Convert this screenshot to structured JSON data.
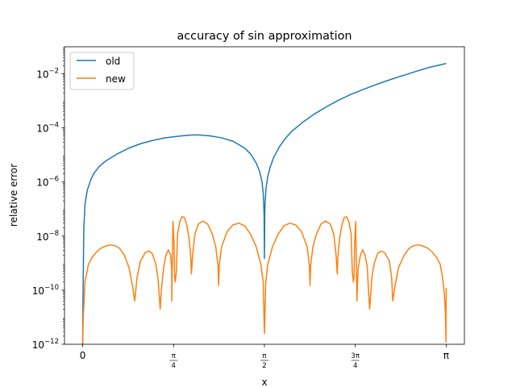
{
  "chart_data": {
    "type": "line",
    "title": "accuracy of sin approximation",
    "xlabel": "x",
    "ylabel": "relative error",
    "yscale": "log",
    "xlim": [
      -0.157,
      3.299
    ],
    "ylim": [
      1e-12,
      0.1
    ],
    "grid": false,
    "legend_position": "top-left",
    "x_ticks": [
      {
        "value": 0,
        "label": "0"
      },
      {
        "value": 0.7854,
        "label_num": "π",
        "label_den": "4"
      },
      {
        "value": 1.5708,
        "label_num": "π",
        "label_den": "2"
      },
      {
        "value": 2.3562,
        "label_num": "3π",
        "label_den": "4"
      },
      {
        "value": 3.1416,
        "label": "π"
      }
    ],
    "y_ticks": [
      {
        "value": 1e-12,
        "base": "10",
        "exp": "−12"
      },
      {
        "value": 1e-10,
        "base": "10",
        "exp": "−10"
      },
      {
        "value": 1e-08,
        "base": "10",
        "exp": "−8"
      },
      {
        "value": 1e-06,
        "base": "10",
        "exp": "−6"
      },
      {
        "value": 0.0001,
        "base": "10",
        "exp": "−4"
      },
      {
        "value": 0.01,
        "base": "10",
        "exp": "−2"
      }
    ],
    "series": [
      {
        "name": "old",
        "color": "#1f77b4",
        "points": [
          [
            0.0,
            1e-12
          ],
          [
            0.003,
            5e-11
          ],
          [
            0.01,
            2e-08
          ],
          [
            0.02,
            1.5e-07
          ],
          [
            0.04,
            5e-07
          ],
          [
            0.07,
            1.2e-06
          ],
          [
            0.1,
            2.2e-06
          ],
          [
            0.15,
            4e-06
          ],
          [
            0.2,
            6e-06
          ],
          [
            0.3,
            1.1e-05
          ],
          [
            0.4,
            1.8e-05
          ],
          [
            0.5,
            2.6e-05
          ],
          [
            0.6,
            3.4e-05
          ],
          [
            0.7,
            4.2e-05
          ],
          [
            0.8,
            4.8e-05
          ],
          [
            0.9,
            5.3e-05
          ],
          [
            0.95,
            5.5e-05
          ],
          [
            1.0,
            5.5e-05
          ],
          [
            1.05,
            5.3e-05
          ],
          [
            1.1,
            5.1e-05
          ],
          [
            1.2,
            4.3e-05
          ],
          [
            1.3,
            3.2e-05
          ],
          [
            1.4,
            1.8e-05
          ],
          [
            1.45,
            1.1e-05
          ],
          [
            1.5,
            5e-06
          ],
          [
            1.53,
            2.4e-06
          ],
          [
            1.55,
            1e-06
          ],
          [
            1.56,
            4e-07
          ],
          [
            1.565,
            1.5e-07
          ],
          [
            1.568,
            6e-08
          ],
          [
            1.5708,
            1.5e-09
          ],
          [
            1.5735,
            6e-08
          ],
          [
            1.576,
            1.6e-07
          ],
          [
            1.585,
            6e-07
          ],
          [
            1.6,
            1.6e-06
          ],
          [
            1.62,
            3.5e-06
          ],
          [
            1.65,
            8e-06
          ],
          [
            1.7,
            2e-05
          ],
          [
            1.75,
            4e-05
          ],
          [
            1.8,
            7e-05
          ],
          [
            1.9,
            0.00016
          ],
          [
            2.0,
            0.00032
          ],
          [
            2.1,
            0.00058
          ],
          [
            2.2,
            0.001
          ],
          [
            2.3,
            0.0016
          ],
          [
            2.4,
            0.0024
          ],
          [
            2.5,
            0.0035
          ],
          [
            2.6,
            0.005
          ],
          [
            2.7,
            0.007
          ],
          [
            2.8,
            0.0095
          ],
          [
            2.9,
            0.013
          ],
          [
            3.0,
            0.0175
          ],
          [
            3.1416,
            0.024
          ]
        ]
      },
      {
        "name": "new",
        "color": "#ff7f0e",
        "points": [
          [
            0.0,
            1e-12
          ],
          [
            0.005,
            1e-11
          ],
          [
            0.02,
            2e-10
          ],
          [
            0.05,
            9e-10
          ],
          [
            0.08,
            1.6e-09
          ],
          [
            0.12,
            2.6e-09
          ],
          [
            0.16,
            3.6e-09
          ],
          [
            0.2,
            4.3e-09
          ],
          [
            0.24,
            4.7e-09
          ],
          [
            0.28,
            4.4e-09
          ],
          [
            0.32,
            3.5e-09
          ],
          [
            0.36,
            2e-09
          ],
          [
            0.4,
            7e-10
          ],
          [
            0.43,
            1.5e-10
          ],
          [
            0.45,
            4e-11
          ],
          [
            0.47,
            3e-10
          ],
          [
            0.5,
            1.2e-09
          ],
          [
            0.54,
            2.4e-09
          ],
          [
            0.57,
            2.8e-09
          ],
          [
            0.6,
            2.3e-09
          ],
          [
            0.63,
            1e-09
          ],
          [
            0.65,
            3e-10
          ],
          [
            0.66,
            8e-11
          ],
          [
            0.67,
            2e-11
          ],
          [
            0.68,
            1e-10
          ],
          [
            0.7,
            7e-10
          ],
          [
            0.72,
            2e-09
          ],
          [
            0.74,
            3.1e-09
          ],
          [
            0.76,
            2e-09
          ],
          [
            0.77,
            6e-10
          ],
          [
            0.77,
            4e-11
          ],
          [
            0.775,
            1e-09
          ],
          [
            0.78,
            3.5e-08
          ],
          [
            0.79,
            5e-09
          ],
          [
            0.795,
            3e-10
          ],
          [
            0.8,
            2e-10
          ],
          [
            0.81,
            5e-10
          ],
          [
            0.82,
            1.2e-08
          ],
          [
            0.84,
            3.5e-08
          ],
          [
            0.86,
            5.2e-08
          ],
          [
            0.88,
            4.8e-08
          ],
          [
            0.9,
            2.5e-08
          ],
          [
            0.92,
            8e-09
          ],
          [
            0.935,
            1.5e-09
          ],
          [
            0.94,
            4e-10
          ],
          [
            0.95,
            2e-09
          ],
          [
            0.97,
            1.2e-08
          ],
          [
            1.0,
            2.8e-08
          ],
          [
            1.04,
            3.6e-08
          ],
          [
            1.08,
            2.8e-08
          ],
          [
            1.12,
            1.2e-08
          ],
          [
            1.15,
            4e-09
          ],
          [
            1.17,
            8e-10
          ],
          [
            1.175,
            1.5e-10
          ],
          [
            1.18,
            8e-10
          ],
          [
            1.2,
            4e-09
          ],
          [
            1.25,
            1.5e-08
          ],
          [
            1.3,
            2.6e-08
          ],
          [
            1.35,
            3e-08
          ],
          [
            1.4,
            2.4e-08
          ],
          [
            1.45,
            1.2e-08
          ],
          [
            1.5,
            4e-09
          ],
          [
            1.54,
            9e-10
          ],
          [
            1.56,
            2e-10
          ],
          [
            1.5708,
            2.5e-12
          ],
          [
            1.582,
            2e-10
          ],
          [
            1.6,
            9e-10
          ],
          [
            1.64,
            4e-09
          ],
          [
            1.69,
            1.2e-08
          ],
          [
            1.74,
            2.4e-08
          ],
          [
            1.79,
            3e-08
          ],
          [
            1.84,
            2.6e-08
          ],
          [
            1.89,
            1.5e-08
          ],
          [
            1.94,
            4e-09
          ],
          [
            1.96,
            8e-10
          ],
          [
            1.965,
            1.5e-10
          ],
          [
            1.97,
            8e-10
          ],
          [
            1.99,
            4e-09
          ],
          [
            2.02,
            1.2e-08
          ],
          [
            2.06,
            2.8e-08
          ],
          [
            2.1,
            3.6e-08
          ],
          [
            2.14,
            2.8e-08
          ],
          [
            2.17,
            1.2e-08
          ],
          [
            2.19,
            2e-09
          ],
          [
            2.2,
            4e-10
          ],
          [
            2.205,
            1.5e-09
          ],
          [
            2.22,
            8e-09
          ],
          [
            2.24,
            2.5e-08
          ],
          [
            2.26,
            4.8e-08
          ],
          [
            2.28,
            5.2e-08
          ],
          [
            2.3,
            3.5e-08
          ],
          [
            2.32,
            1.2e-08
          ],
          [
            2.33,
            5e-10
          ],
          [
            2.34,
            2e-10
          ],
          [
            2.345,
            3e-10
          ],
          [
            2.35,
            5e-09
          ],
          [
            2.36,
            3.5e-08
          ],
          [
            2.365,
            1e-09
          ],
          [
            2.37,
            4e-11
          ],
          [
            2.38,
            6e-10
          ],
          [
            2.4,
            2e-09
          ],
          [
            2.42,
            3.1e-09
          ],
          [
            2.44,
            2e-09
          ],
          [
            2.46,
            7e-10
          ],
          [
            2.47,
            1e-10
          ],
          [
            2.48,
            2e-11
          ],
          [
            2.49,
            8e-11
          ],
          [
            2.5,
            3e-10
          ],
          [
            2.52,
            1e-09
          ],
          [
            2.55,
            2.3e-09
          ],
          [
            2.58,
            2.8e-09
          ],
          [
            2.61,
            2.4e-09
          ],
          [
            2.65,
            1.2e-09
          ],
          [
            2.67,
            3e-10
          ],
          [
            2.68,
            4e-11
          ],
          [
            2.7,
            1.5e-10
          ],
          [
            2.73,
            7e-10
          ],
          [
            2.78,
            2e-09
          ],
          [
            2.82,
            3.5e-09
          ],
          [
            2.86,
            4.4e-09
          ],
          [
            2.9,
            4.7e-09
          ],
          [
            2.94,
            4.3e-09
          ],
          [
            2.98,
            3.6e-09
          ],
          [
            3.02,
            2.6e-09
          ],
          [
            3.06,
            1.6e-09
          ],
          [
            3.09,
            9e-10
          ],
          [
            3.11,
            3e-10
          ],
          [
            3.125,
            8e-11
          ],
          [
            3.135,
            1.5e-11
          ],
          [
            3.1396,
            1.2e-12
          ],
          [
            3.1416,
            1.2e-10
          ]
        ]
      }
    ]
  }
}
